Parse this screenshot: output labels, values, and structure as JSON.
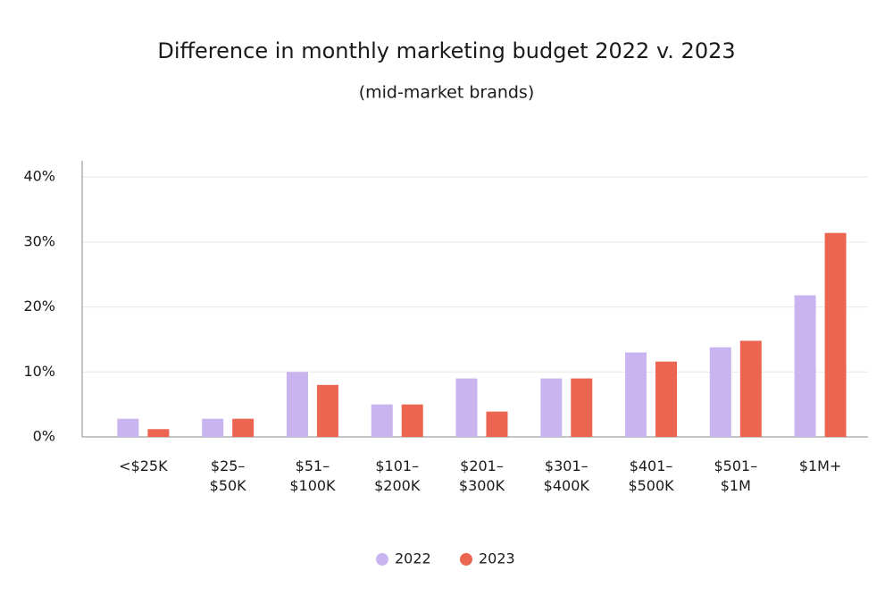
{
  "chart_data": {
    "type": "bar",
    "title": "Difference in monthly marketing budget 2022 v. 2023",
    "subtitle": "(mid-market brands)",
    "categories": [
      [
        "<$25K"
      ],
      [
        "$25–",
        "$50K"
      ],
      [
        "$51–",
        "$100K"
      ],
      [
        "$101–",
        "$200K"
      ],
      [
        "$201–",
        "$300K"
      ],
      [
        "$301–",
        "$400K"
      ],
      [
        "$401–",
        "$500K"
      ],
      [
        "$501–",
        "$1M"
      ],
      [
        "$1M+"
      ]
    ],
    "series": [
      {
        "name": "2022",
        "color": "#c9b4f0",
        "values": [
          2.8,
          2.8,
          10,
          5,
          9,
          9,
          13,
          13.8,
          21.8
        ]
      },
      {
        "name": "2023",
        "color": "#ec6551",
        "values": [
          1.2,
          2.8,
          8,
          5,
          3.9,
          9,
          11.6,
          14.8,
          31.4
        ]
      }
    ],
    "ylim": [
      0,
      42.5
    ],
    "yticks": [
      {
        "value": 0,
        "label": "0%"
      },
      {
        "value": 10,
        "label": "10%"
      },
      {
        "value": 20,
        "label": "20%"
      },
      {
        "value": 30,
        "label": "30%"
      },
      {
        "value": 40,
        "label": "40%"
      }
    ],
    "grid": true,
    "legend": "bottom"
  }
}
